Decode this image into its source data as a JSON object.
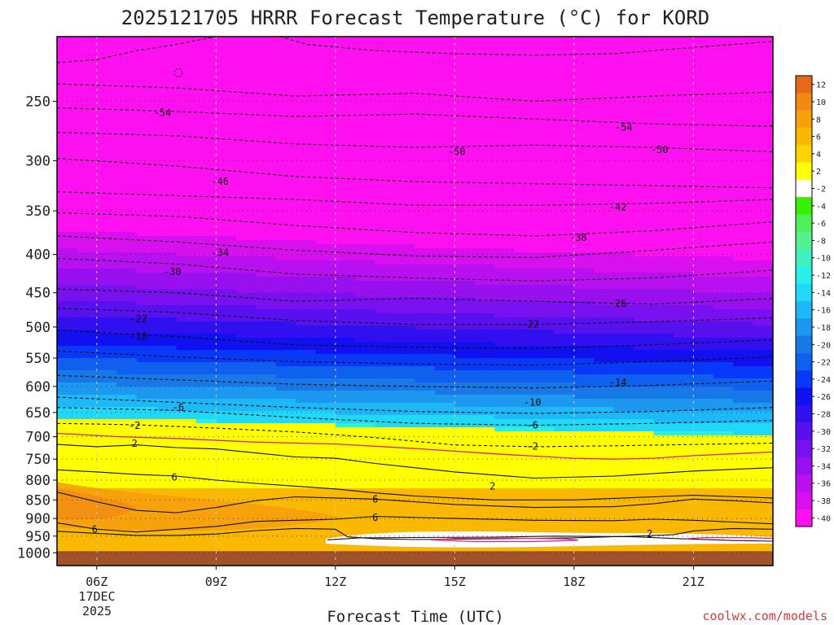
{
  "chart_data": {
    "type": "heatmap",
    "title": "2025121705 HRRR Forecast Temperature (°C) for KORD",
    "xlabel": "Forecast Time (UTC)",
    "ylabel": "",
    "credit": "coolwx.com/models",
    "x_range_hours": [
      5,
      23
    ],
    "y_axis": "pressure (hPa), log scale, inverted",
    "ylim": [
      1040,
      205
    ],
    "x_ticks": [
      {
        "hour": 6,
        "label": "06Z"
      },
      {
        "hour": 9,
        "label": "09Z"
      },
      {
        "hour": 12,
        "label": "12Z"
      },
      {
        "hour": 15,
        "label": "15Z"
      },
      {
        "hour": 18,
        "label": "18Z"
      },
      {
        "hour": 21,
        "label": "21Z"
      }
    ],
    "x_date_labels": [
      "17DEC",
      "2025"
    ],
    "y_ticks": [
      250,
      300,
      350,
      400,
      450,
      500,
      550,
      600,
      650,
      700,
      750,
      800,
      850,
      900,
      950,
      1000
    ],
    "colorbar": {
      "labels": [
        "12",
        "10",
        "8",
        "6",
        "4",
        "2",
        "-2",
        "-4",
        "-6",
        "-8",
        "-10",
        "-12",
        "-14",
        "-16",
        "-18",
        "-20",
        "-22",
        "-24",
        "-26",
        "-28",
        "-30",
        "-32",
        "-34",
        "-36",
        "-38",
        "-40"
      ],
      "colors": [
        "#e8681a",
        "#f08a14",
        "#f7a00c",
        "#fbb800",
        "#ffd200",
        "#ffff00",
        "#ffffff",
        "#36f000",
        "#4ef058",
        "#55f090",
        "#40f0c0",
        "#28f0e8",
        "#20d8f8",
        "#1cb8f8",
        "#1c98f0",
        "#1878e8",
        "#1060f0",
        "#0838f8",
        "#1010f0",
        "#3010f0",
        "#5810f0",
        "#7810f0",
        "#9810f0",
        "#b810f0",
        "#d810f0",
        "#ff10f0"
      ]
    },
    "contour_labels": [
      {
        "text": "-54",
        "hour": 7.65,
        "p": 259
      },
      {
        "text": "-54",
        "hour": 19.25,
        "p": 271
      },
      {
        "text": "-50",
        "hour": 15.05,
        "p": 292
      },
      {
        "text": "-50",
        "hour": 20.15,
        "p": 290
      },
      {
        "text": "-46",
        "hour": 9.1,
        "p": 320
      },
      {
        "text": "-42",
        "hour": 19.1,
        "p": 346
      },
      {
        "text": "-38",
        "hour": 18.1,
        "p": 380
      },
      {
        "text": "-34",
        "hour": 9.1,
        "p": 398
      },
      {
        "text": "-30",
        "hour": 7.9,
        "p": 422
      },
      {
        "text": "-26",
        "hour": 19.1,
        "p": 465
      },
      {
        "text": "-22",
        "hour": 7.05,
        "p": 488
      },
      {
        "text": "-22",
        "hour": 16.9,
        "p": 496
      },
      {
        "text": "-18",
        "hour": 7.05,
        "p": 515
      },
      {
        "text": "-14",
        "hour": 19.1,
        "p": 593
      },
      {
        "text": "-10",
        "hour": 16.95,
        "p": 630
      },
      {
        "text": "-6",
        "hour": 8.05,
        "p": 640
      },
      {
        "text": "-6",
        "hour": 16.95,
        "p": 676
      },
      {
        "text": "-2",
        "hour": 6.95,
        "p": 677
      },
      {
        "text": "-2",
        "hour": 16.95,
        "p": 721
      },
      {
        "text": "2",
        "hour": 6.95,
        "p": 715
      },
      {
        "text": "6",
        "hour": 7.95,
        "p": 793
      },
      {
        "text": "2",
        "hour": 15.95,
        "p": 815
      },
      {
        "text": "6",
        "hour": 13.0,
        "p": 848
      },
      {
        "text": "6",
        "hour": 13.0,
        "p": 897
      },
      {
        "text": "6",
        "hour": 5.95,
        "p": 930
      },
      {
        "text": "2",
        "hour": 19.9,
        "p": 944
      }
    ]
  }
}
